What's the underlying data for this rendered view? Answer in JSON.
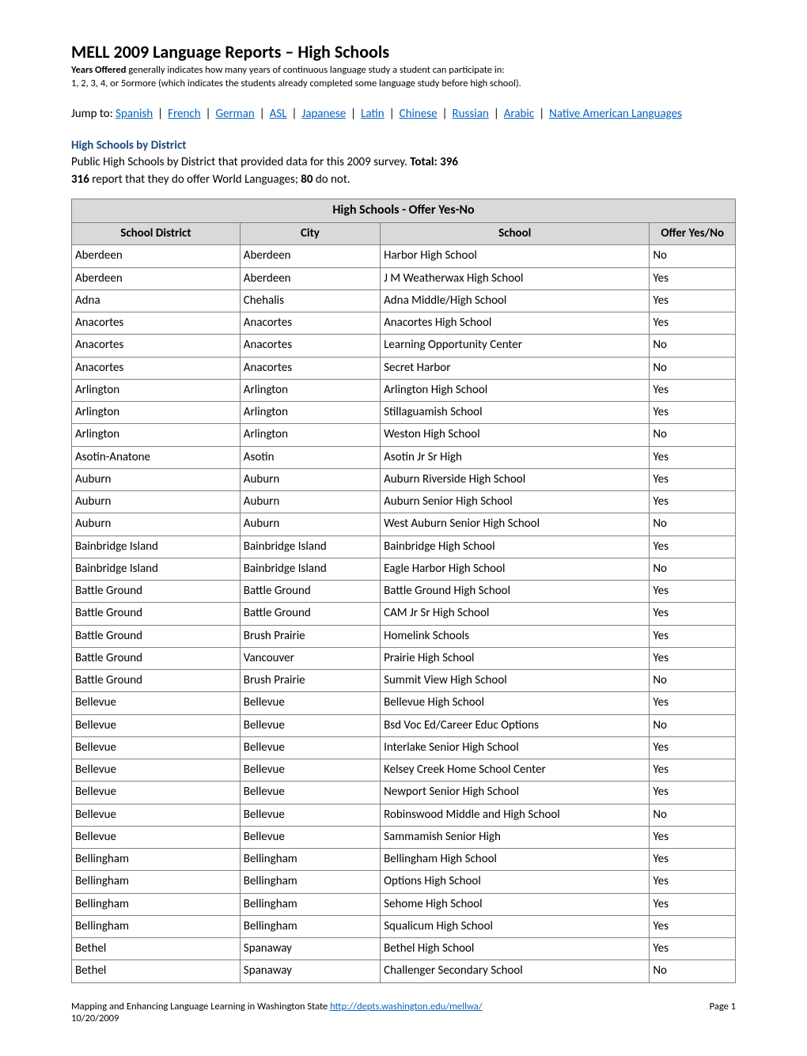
{
  "title": "MELL 2009 Language Reports – High Schools",
  "intro_bold": "Years Offered",
  "intro_rest": " generally indicates how many years of continuous language study a student can participate in:",
  "intro_line2": "1, 2, 3, 4, or 5ormore (which indicates the students already completed some language study before high school).",
  "jump_label": "Jump to:  ",
  "jump_links": [
    "Spanish",
    "French",
    "German",
    "ASL",
    "Japanese",
    "Latin",
    "Chinese",
    "Russian",
    "Arabic",
    "Native American Languages"
  ],
  "section_heading": "High Schools by District",
  "desc_1a": "Public High Schools by District that provided data for this 2009 survey. ",
  "desc_1b": "Total: 396",
  "desc_2a": "316",
  "desc_2b": " report that they do offer World Languages; ",
  "desc_2c": "80",
  "desc_2d": " do not.",
  "table": {
    "title": "High Schools - Offer Yes-No",
    "columns": [
      "School District",
      "City",
      "School",
      "Offer Yes/No"
    ],
    "rows": [
      [
        "Aberdeen",
        "Aberdeen",
        "Harbor High School",
        "No"
      ],
      [
        "Aberdeen",
        "Aberdeen",
        "J M Weatherwax High School",
        "Yes"
      ],
      [
        "Adna",
        "Chehalis",
        "Adna Middle/High School",
        "Yes"
      ],
      [
        "Anacortes",
        "Anacortes",
        "Anacortes High School",
        "Yes"
      ],
      [
        "Anacortes",
        "Anacortes",
        "Learning Opportunity Center",
        "No"
      ],
      [
        "Anacortes",
        "Anacortes",
        "Secret Harbor",
        "No"
      ],
      [
        "Arlington",
        "Arlington",
        "Arlington High School",
        "Yes"
      ],
      [
        "Arlington",
        "Arlington",
        "Stillaguamish School",
        "Yes"
      ],
      [
        "Arlington",
        "Arlington",
        "Weston High School",
        "No"
      ],
      [
        "Asotin-Anatone",
        "Asotin",
        "Asotin Jr Sr High",
        "Yes"
      ],
      [
        "Auburn",
        "Auburn",
        "Auburn Riverside High School",
        "Yes"
      ],
      [
        "Auburn",
        "Auburn",
        "Auburn Senior High School",
        "Yes"
      ],
      [
        "Auburn",
        "Auburn",
        "West Auburn Senior High School",
        "No"
      ],
      [
        "Bainbridge Island",
        "Bainbridge Island",
        "Bainbridge High School",
        "Yes"
      ],
      [
        "Bainbridge Island",
        "Bainbridge Island",
        "Eagle Harbor High School",
        "No"
      ],
      [
        "Battle Ground",
        "Battle Ground",
        "Battle Ground High School",
        "Yes"
      ],
      [
        "Battle Ground",
        "Battle Ground",
        "CAM Jr Sr High School",
        "Yes"
      ],
      [
        "Battle Ground",
        "Brush Prairie",
        "Homelink Schools",
        "Yes"
      ],
      [
        "Battle Ground",
        "Vancouver",
        "Prairie High School",
        "Yes"
      ],
      [
        "Battle Ground",
        "Brush Prairie",
        "Summit View High School",
        "No"
      ],
      [
        "Bellevue",
        "Bellevue",
        "Bellevue High School",
        "Yes"
      ],
      [
        "Bellevue",
        "Bellevue",
        "Bsd Voc Ed/Career Educ Options",
        "No"
      ],
      [
        "Bellevue",
        "Bellevue",
        "Interlake Senior High School",
        "Yes"
      ],
      [
        "Bellevue",
        "Bellevue",
        "Kelsey Creek Home School Center",
        "Yes"
      ],
      [
        "Bellevue",
        "Bellevue",
        "Newport Senior High School",
        "Yes"
      ],
      [
        "Bellevue",
        "Bellevue",
        "Robinswood Middle and High School",
        "No"
      ],
      [
        "Bellevue",
        "Bellevue",
        "Sammamish Senior High",
        "Yes"
      ],
      [
        "Bellingham",
        "Bellingham",
        "Bellingham High School",
        "Yes"
      ],
      [
        "Bellingham",
        "Bellingham",
        "Options High School",
        "Yes"
      ],
      [
        "Bellingham",
        "Bellingham",
        "Sehome High School",
        "Yes"
      ],
      [
        "Bellingham",
        "Bellingham",
        "Squalicum High School",
        "Yes"
      ],
      [
        "Bethel",
        "Spanaway",
        "Bethel High School",
        "Yes"
      ],
      [
        "Bethel",
        "Spanaway",
        "Challenger Secondary School",
        "No"
      ]
    ]
  },
  "footer": {
    "text": "Mapping and Enhancing Language Learning in Washington State  ",
    "link": "http://depts.washington.edu/mellwa/",
    "date": "10/20/2009",
    "page": "Page 1"
  }
}
